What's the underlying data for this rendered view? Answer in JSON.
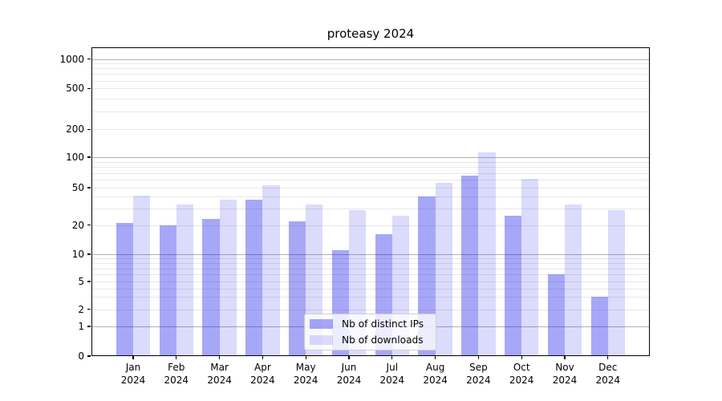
{
  "chart_data": {
    "type": "bar",
    "title": "proteasy 2024",
    "xlabel": "",
    "ylabel": "",
    "categories": [
      "Jan",
      "Feb",
      "Mar",
      "Apr",
      "May",
      "Jun",
      "Jul",
      "Aug",
      "Sep",
      "Oct",
      "Nov",
      "Dec"
    ],
    "x_tick_second_line": "2024",
    "series": [
      {
        "name": "Nb of distinct IPs",
        "color": "rgba(0,0,234,0.345)",
        "values": [
          21,
          20,
          23,
          37,
          22,
          11,
          16,
          40,
          66,
          25,
          6,
          3
        ]
      },
      {
        "name": "Nb of downloads",
        "color": "rgba(0,0,234,0.14)",
        "values": [
          41,
          33,
          37,
          53,
          33,
          29,
          25,
          56,
          113,
          61,
          33,
          29
        ]
      }
    ],
    "y_axis": {
      "scale": "symlog",
      "ticks": [
        0,
        1,
        2,
        5,
        10,
        20,
        50,
        100,
        200,
        500,
        1000
      ],
      "tick_labels": [
        "0",
        "1",
        "2",
        "5",
        "10",
        "20",
        "50",
        "100",
        "200",
        "500",
        "1000"
      ],
      "tick_fractions_from_top": [
        1.0,
        0.9039,
        0.8488,
        0.7584,
        0.6701,
        0.5753,
        0.4545,
        0.3558,
        0.2657,
        0.133,
        0.0377
      ],
      "major_gridline_values": [
        1,
        10,
        100,
        1000
      ],
      "minor_gridline_values": [
        2,
        3,
        4,
        5,
        6,
        7,
        8,
        9,
        20,
        30,
        40,
        50,
        60,
        70,
        80,
        90,
        200,
        300,
        400,
        500,
        600,
        700,
        800,
        900
      ]
    },
    "grid": true,
    "legend": {
      "position": "inside-bottom-center",
      "items": [
        "Nb of distinct IPs",
        "Nb of downloads"
      ]
    }
  },
  "colors": {
    "major_grid": "#b3b3b3",
    "minor_grid": "#e7e7e7",
    "spine": "#000000",
    "text": "#000000",
    "legend_border": "#d0d0d0"
  }
}
